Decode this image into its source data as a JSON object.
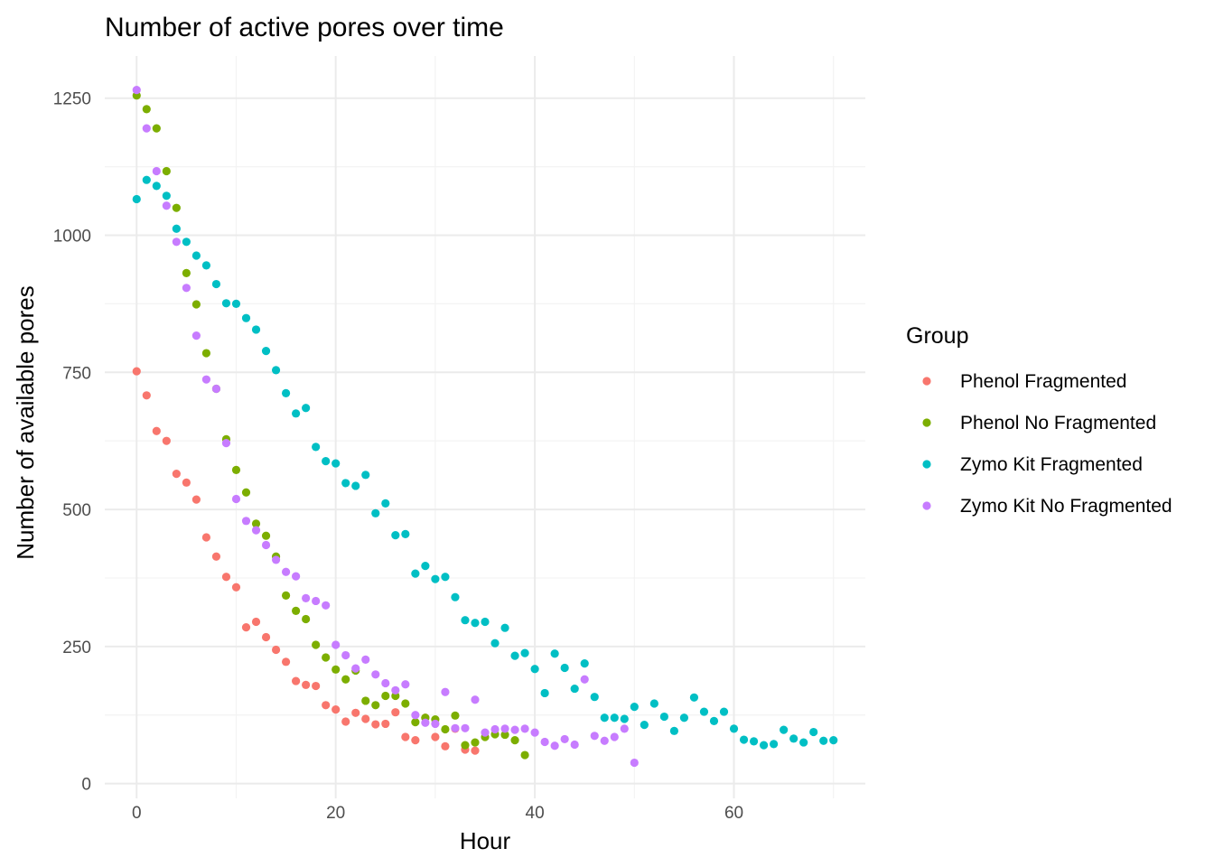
{
  "chart_data": {
    "type": "scatter",
    "title": "Number of active pores over time",
    "xlabel": "Hour",
    "ylabel": "Number of available pores",
    "xlim": [
      -3.2,
      73.2
    ],
    "ylim": [
      -27,
      1327
    ],
    "x_ticks": [
      0,
      20,
      40,
      60
    ],
    "y_ticks": [
      0,
      250,
      500,
      750,
      1000,
      1250
    ],
    "grid": true,
    "legend": {
      "title": "Group",
      "position": "right"
    },
    "series": [
      {
        "name": "Phenol Fragmented",
        "color": "#F8766D",
        "x": [
          0,
          1,
          2,
          3,
          4,
          5,
          6,
          7,
          8,
          9,
          10,
          11,
          12,
          13,
          14,
          15,
          16,
          17,
          18,
          19,
          20,
          21,
          22,
          23,
          24,
          25,
          26,
          27,
          28,
          29,
          30,
          31,
          32,
          33,
          34
        ],
        "y": [
          752,
          708,
          643,
          625,
          565,
          549,
          518,
          449,
          414,
          377,
          358,
          285,
          295,
          267,
          244,
          222,
          187,
          180,
          178,
          143,
          135,
          113,
          129,
          118,
          108,
          109,
          130,
          85,
          79,
          120,
          85,
          68,
          100,
          62,
          60
        ]
      },
      {
        "name": "Phenol No Fragmented",
        "color": "#7CAE00",
        "x": [
          0,
          1,
          2,
          3,
          4,
          5,
          6,
          7,
          8,
          9,
          10,
          11,
          12,
          13,
          14,
          15,
          16,
          17,
          18,
          19,
          20,
          21,
          22,
          23,
          24,
          25,
          26,
          27,
          28,
          29,
          30,
          31,
          32,
          33,
          34,
          35,
          36,
          37,
          38,
          39
        ],
        "y": [
          1255,
          1230,
          1195,
          1117,
          1050,
          931,
          874,
          785,
          720,
          628,
          572,
          531,
          474,
          452,
          414,
          343,
          315,
          300,
          253,
          230,
          208,
          190,
          206,
          151,
          143,
          160,
          160,
          146,
          112,
          120,
          117,
          99,
          124,
          70,
          75,
          85,
          90,
          89,
          79,
          52
        ]
      },
      {
        "name": "Zymo Kit Fragmented",
        "color": "#00BFC4",
        "x": [
          0,
          1,
          2,
          3,
          4,
          5,
          6,
          7,
          8,
          9,
          10,
          11,
          12,
          13,
          14,
          15,
          16,
          17,
          18,
          19,
          20,
          21,
          22,
          23,
          24,
          25,
          26,
          27,
          28,
          29,
          30,
          31,
          32,
          33,
          34,
          35,
          36,
          37,
          38,
          39,
          40,
          41,
          42,
          43,
          44,
          45,
          46,
          47,
          48,
          49,
          50,
          51,
          52,
          53,
          54,
          55,
          56,
          57,
          58,
          59,
          60,
          61,
          62,
          63,
          64,
          65,
          66,
          67,
          68,
          69,
          70
        ],
        "y": [
          1066,
          1101,
          1090,
          1072,
          1012,
          988,
          963,
          945,
          911,
          876,
          875,
          849,
          828,
          789,
          754,
          712,
          675,
          685,
          614,
          588,
          584,
          548,
          543,
          563,
          493,
          511,
          453,
          455,
          383,
          397,
          373,
          377,
          340,
          298,
          293,
          295,
          256,
          284,
          233,
          238,
          209,
          165,
          237,
          211,
          173,
          219,
          158,
          120,
          120,
          118,
          140,
          107,
          146,
          122,
          96,
          120,
          157,
          131,
          114,
          131,
          100,
          80,
          77,
          70,
          72,
          98,
          82,
          75,
          94,
          78,
          79
        ]
      },
      {
        "name": "Zymo Kit No Fragmented",
        "color": "#C77CFF",
        "x": [
          0,
          1,
          2,
          3,
          4,
          5,
          6,
          7,
          8,
          9,
          10,
          11,
          12,
          13,
          14,
          15,
          16,
          17,
          18,
          19,
          20,
          21,
          22,
          23,
          24,
          25,
          26,
          27,
          28,
          29,
          30,
          31,
          32,
          33,
          34,
          35,
          36,
          37,
          38,
          39,
          40,
          41,
          42,
          43,
          44,
          45,
          46,
          47,
          48,
          49,
          50
        ],
        "y": [
          1265,
          1195,
          1117,
          1054,
          988,
          904,
          817,
          737,
          720,
          621,
          519,
          479,
          462,
          435,
          408,
          386,
          378,
          338,
          333,
          325,
          253,
          234,
          210,
          226,
          199,
          183,
          170,
          181,
          125,
          111,
          109,
          167,
          101,
          101,
          153,
          93,
          99,
          100,
          98,
          100,
          93,
          76,
          69,
          81,
          71,
          190,
          87,
          78,
          85,
          100,
          38
        ]
      }
    ]
  }
}
